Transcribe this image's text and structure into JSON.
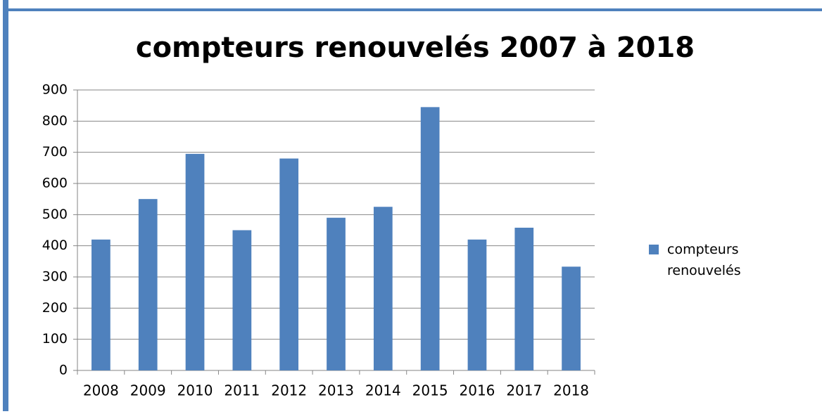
{
  "chart_data": {
    "type": "bar",
    "title": "compteurs renouvelés 2007 à 2018",
    "categories": [
      "2008",
      "2009",
      "2010",
      "2011",
      "2012",
      "2013",
      "2014",
      "2015",
      "2016",
      "2017",
      "2018"
    ],
    "series": [
      {
        "name": "compteurs renouvelés",
        "color": "#4f81bd",
        "values": [
          420,
          550,
          695,
          450,
          680,
          490,
          525,
          845,
          420,
          458,
          333
        ]
      }
    ],
    "ylim": [
      0,
      900
    ],
    "yticks": [
      0,
      100,
      200,
      300,
      400,
      500,
      600,
      700,
      800,
      900
    ],
    "grid": true,
    "legend": "right"
  }
}
